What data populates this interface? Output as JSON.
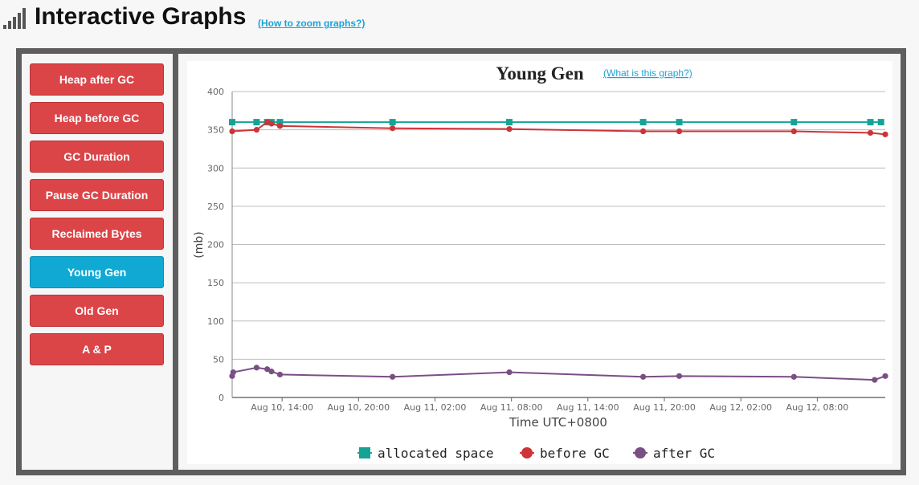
{
  "header": {
    "title": "Interactive Graphs",
    "zoom_link": "(How to zoom graphs?)"
  },
  "sidebar": {
    "items": [
      {
        "label": "Heap after GC",
        "active": false
      },
      {
        "label": "Heap before GC",
        "active": false
      },
      {
        "label": "GC Duration",
        "active": false
      },
      {
        "label": "Pause GC Duration",
        "active": false
      },
      {
        "label": "Reclaimed Bytes",
        "active": false
      },
      {
        "label": "Young Gen",
        "active": true
      },
      {
        "label": "Old Gen",
        "active": false
      },
      {
        "label": "A & P",
        "active": false
      }
    ]
  },
  "colors": {
    "nav_button": "#dc4548",
    "nav_button_active": "#10a9d3",
    "link": "#1aa3d9",
    "allocated": "#16a396",
    "before": "#cc3438",
    "after": "#7a4f84"
  },
  "chart_data": {
    "type": "line",
    "title": "Young Gen",
    "help_link": "(What is this graph?)",
    "xlabel": "Time UTC+0800",
    "ylabel": "(mb)",
    "ylim": [
      0,
      400
    ],
    "yticks": [
      0,
      50,
      100,
      150,
      200,
      250,
      300,
      350,
      400
    ],
    "xlim": [
      "2025-08-10 10:05",
      "2025-08-12 13:20"
    ],
    "xticks": [
      {
        "t": "2025-08-10 14:00",
        "label": "Aug 10, 14:00"
      },
      {
        "t": "2025-08-10 20:00",
        "label": "Aug 10, 20:00"
      },
      {
        "t": "2025-08-11 02:00",
        "label": "Aug 11, 02:00"
      },
      {
        "t": "2025-08-11 08:00",
        "label": "Aug 11, 08:00"
      },
      {
        "t": "2025-08-11 14:00",
        "label": "Aug 11, 14:00"
      },
      {
        "t": "2025-08-11 20:00",
        "label": "Aug 11, 20:00"
      },
      {
        "t": "2025-08-12 02:00",
        "label": "Aug 12, 02:00"
      },
      {
        "t": "2025-08-12 08:00",
        "label": "Aug 12, 08:00"
      }
    ],
    "grid": true,
    "legend": "bottom-center",
    "series": [
      {
        "name": "allocated space",
        "marker": "square",
        "color": "#16a396",
        "points": [
          [
            "2025-08-10 10:05",
            360
          ],
          [
            "2025-08-10 12:00",
            360
          ],
          [
            "2025-08-10 12:50",
            360
          ],
          [
            "2025-08-10 13:10",
            360
          ],
          [
            "2025-08-10 13:50",
            360
          ],
          [
            "2025-08-10 22:40",
            360
          ],
          [
            "2025-08-11 07:50",
            360
          ],
          [
            "2025-08-11 18:20",
            360
          ],
          [
            "2025-08-11 21:10",
            360
          ],
          [
            "2025-08-12 06:10",
            360
          ],
          [
            "2025-08-12 12:10",
            360
          ],
          [
            "2025-08-12 13:00",
            360
          ]
        ]
      },
      {
        "name": "before GC",
        "marker": "circle",
        "color": "#cc3438",
        "points": [
          [
            "2025-08-10 10:05",
            348
          ],
          [
            "2025-08-10 12:00",
            350
          ],
          [
            "2025-08-10 12:50",
            360
          ],
          [
            "2025-08-10 13:10",
            358
          ],
          [
            "2025-08-10 13:50",
            355
          ],
          [
            "2025-08-10 22:40",
            352
          ],
          [
            "2025-08-11 07:50",
            351
          ],
          [
            "2025-08-11 18:20",
            348
          ],
          [
            "2025-08-11 21:10",
            348
          ],
          [
            "2025-08-12 06:10",
            348
          ],
          [
            "2025-08-12 12:10",
            346
          ],
          [
            "2025-08-12 13:20",
            344
          ]
        ]
      },
      {
        "name": "after GC",
        "marker": "circle",
        "color": "#7a4f84",
        "points": [
          [
            "2025-08-10 10:05",
            28
          ],
          [
            "2025-08-10 10:10",
            33
          ],
          [
            "2025-08-10 12:00",
            39
          ],
          [
            "2025-08-10 12:50",
            37
          ],
          [
            "2025-08-10 13:10",
            34
          ],
          [
            "2025-08-10 13:50",
            30
          ],
          [
            "2025-08-10 22:40",
            27
          ],
          [
            "2025-08-11 07:50",
            33
          ],
          [
            "2025-08-11 18:20",
            27
          ],
          [
            "2025-08-11 21:10",
            28
          ],
          [
            "2025-08-12 06:10",
            27
          ],
          [
            "2025-08-12 12:30",
            23
          ],
          [
            "2025-08-12 13:20",
            28
          ]
        ]
      }
    ]
  }
}
